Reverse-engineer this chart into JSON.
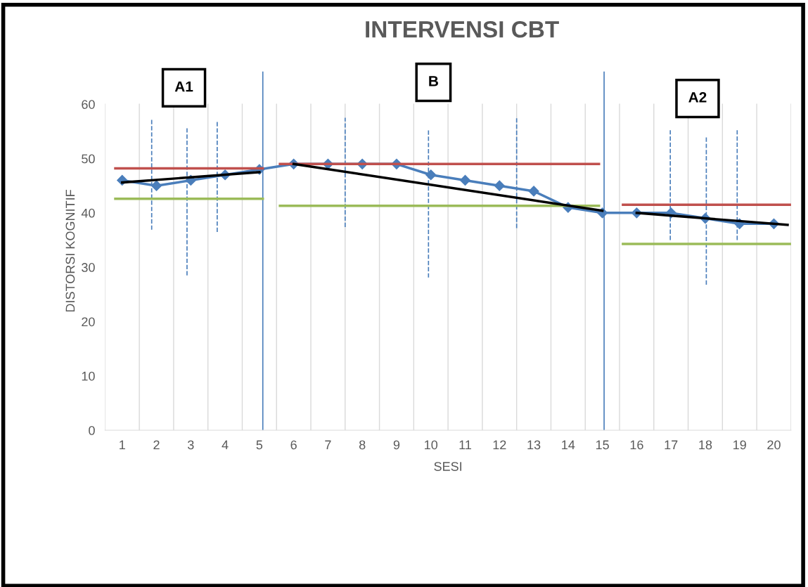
{
  "chart_data": {
    "type": "line",
    "title": "INTERVENSI CBT",
    "xlabel": "SESI",
    "ylabel": "DISTORSI KOGNITIF",
    "x": [
      1,
      2,
      3,
      4,
      5,
      6,
      7,
      8,
      9,
      10,
      11,
      12,
      13,
      14,
      15,
      16,
      17,
      18,
      19,
      20
    ],
    "xlim": [
      0.5,
      20.5
    ],
    "xticks": [
      1,
      2,
      3,
      4,
      5,
      6,
      7,
      8,
      9,
      10,
      11,
      12,
      13,
      14,
      15,
      16,
      17,
      18,
      19,
      20
    ],
    "ylim": [
      0,
      66
    ],
    "yticks": [
      0,
      10,
      20,
      30,
      40,
      50,
      60
    ],
    "grid": "x",
    "legend": false,
    "series": [
      {
        "color": "#4a7ebb",
        "marker": "diamond",
        "line_style": "solid",
        "values": [
          46,
          45,
          46,
          47,
          48,
          49,
          49,
          49,
          49,
          47,
          46,
          45,
          44,
          41,
          40,
          40,
          40,
          39,
          38,
          38
        ]
      },
      {
        "color": "#c0504d",
        "marker": "none",
        "line_style": "solid",
        "x": [
          0.8,
          5.1
        ],
        "values": [
          48.2,
          48.2
        ]
      },
      {
        "color": "#c0504d",
        "marker": "none",
        "line_style": "solid",
        "x": [
          5.6,
          14.9
        ],
        "values": [
          49,
          49
        ]
      },
      {
        "color": "#c0504d",
        "marker": "none",
        "line_style": "solid",
        "x": [
          15.6,
          20.5
        ],
        "values": [
          41.5,
          41.5
        ]
      },
      {
        "color": "#9bbb59",
        "marker": "none",
        "line_style": "solid",
        "x": [
          0.8,
          5.1
        ],
        "values": [
          42.6,
          42.6
        ]
      },
      {
        "color": "#9bbb59",
        "marker": "none",
        "line_style": "solid",
        "x": [
          5.6,
          14.9
        ],
        "values": [
          41.3,
          41.3
        ]
      },
      {
        "color": "#9bbb59",
        "marker": "none",
        "line_style": "solid",
        "x": [
          15.6,
          20.5
        ],
        "values": [
          34.3,
          34.3
        ]
      },
      {
        "color": "#000000",
        "marker": "none",
        "line_style": "solid",
        "x": [
          1,
          5
        ],
        "values": [
          45.6,
          47.5
        ]
      },
      {
        "color": "#000000",
        "marker": "none",
        "line_style": "solid",
        "x": [
          6,
          15
        ],
        "values": [
          49,
          40.4
        ]
      },
      {
        "color": "#000000",
        "marker": "none",
        "line_style": "solid",
        "x": [
          16,
          20.4
        ],
        "values": [
          40,
          37.8
        ]
      },
      {
        "color": "#4a7ebb",
        "marker": "none",
        "line_style": "dashed",
        "x": [
          1.86,
          1.86
        ],
        "values": [
          36.9,
          57.3
        ]
      },
      {
        "color": "#4a7ebb",
        "marker": "none",
        "line_style": "dashed",
        "x": [
          2.89,
          2.89
        ],
        "values": [
          28.5,
          55.7
        ]
      },
      {
        "color": "#4a7ebb",
        "marker": "none",
        "line_style": "dashed",
        "x": [
          3.77,
          3.77
        ],
        "values": [
          36.5,
          57
        ]
      },
      {
        "color": "#4a7ebb",
        "marker": "none",
        "line_style": "dashed",
        "x": [
          7.5,
          7.5
        ],
        "values": [
          37.4,
          57.5
        ]
      },
      {
        "color": "#4a7ebb",
        "marker": "none",
        "line_style": "dashed",
        "x": [
          9.93,
          9.93
        ],
        "values": [
          28.1,
          55.3
        ]
      },
      {
        "color": "#4a7ebb",
        "marker": "none",
        "line_style": "dashed",
        "x": [
          12.5,
          12.5
        ],
        "values": [
          37.2,
          57.6
        ]
      },
      {
        "color": "#4a7ebb",
        "marker": "none",
        "line_style": "dashed",
        "x": [
          16.98,
          16.98
        ],
        "values": [
          35,
          55.3
        ]
      },
      {
        "color": "#4a7ebb",
        "marker": "none",
        "line_style": "dashed",
        "x": [
          18.03,
          18.03
        ],
        "values": [
          26.8,
          54
        ]
      },
      {
        "color": "#4a7ebb",
        "marker": "none",
        "line_style": "dashed",
        "x": [
          18.93,
          18.93
        ],
        "values": [
          35,
          55.3
        ]
      }
    ],
    "ref_lines": [
      {
        "axis": "x",
        "value": 5.1,
        "color": "#4a7ebb",
        "line_style": "solid"
      },
      {
        "axis": "x",
        "value": 15.05,
        "color": "#4a7ebb",
        "line_style": "solid"
      }
    ],
    "annotations": [
      "A1",
      "B",
      "A2"
    ]
  }
}
